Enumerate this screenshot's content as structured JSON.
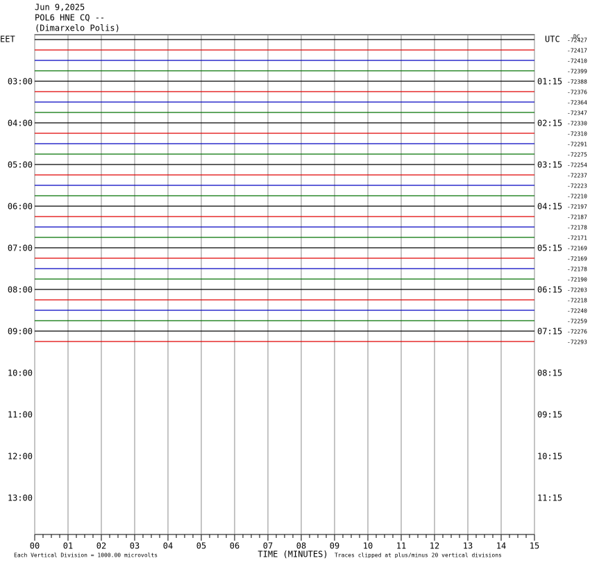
{
  "chart_data": {
    "type": "helicorder",
    "header": [
      "Jun 9,2025",
      "POL6 HNE CQ --",
      "(Dimarxelo Polis)"
    ],
    "left_zone": "EET",
    "right_zone": "UTC",
    "dc_label": "DC",
    "left_hours": [
      "03:00",
      "04:00",
      "05:00",
      "06:00",
      "07:00",
      "08:00",
      "09:00",
      "10:00",
      "11:00",
      "12:00",
      "13:00"
    ],
    "right_hours": [
      "01:15",
      "02:15",
      "03:15",
      "04:15",
      "05:15",
      "06:15",
      "07:15",
      "08:15",
      "09:15",
      "10:15",
      "11:15"
    ],
    "trace_colors": [
      "#000000",
      "#e00000",
      "#0000c0",
      "#007000"
    ],
    "dc_offsets": [
      -72427,
      -72417,
      -72410,
      -72399,
      -72388,
      -72376,
      -72364,
      -72347,
      -72330,
      -72310,
      -72291,
      -72275,
      -72254,
      -72237,
      -72223,
      -72210,
      -72197,
      -72187,
      -72178,
      -72171,
      -72169,
      -72169,
      -72178,
      -72190,
      -72203,
      -72218,
      -72240,
      -72259,
      -72276,
      -72293
    ],
    "xlim": [
      0,
      15
    ],
    "xticks": [
      {
        "value": 0,
        "label": "00"
      },
      {
        "value": 1,
        "label": "01"
      },
      {
        "value": 2,
        "label": "02"
      },
      {
        "value": 3,
        "label": "03"
      },
      {
        "value": 4,
        "label": "04"
      },
      {
        "value": 5,
        "label": "05"
      },
      {
        "value": 6,
        "label": "06"
      },
      {
        "value": 7,
        "label": "07"
      },
      {
        "value": 8,
        "label": "08"
      },
      {
        "value": 9,
        "label": "09"
      },
      10,
      11,
      12,
      13,
      14,
      15
    ],
    "xlabel": "TIME (MINUTES)",
    "scale_note": "Each Vertical Division = 1000.00 microvolts",
    "clip_note": "Traces clipped at plus/minus 20 vertical divisions"
  }
}
